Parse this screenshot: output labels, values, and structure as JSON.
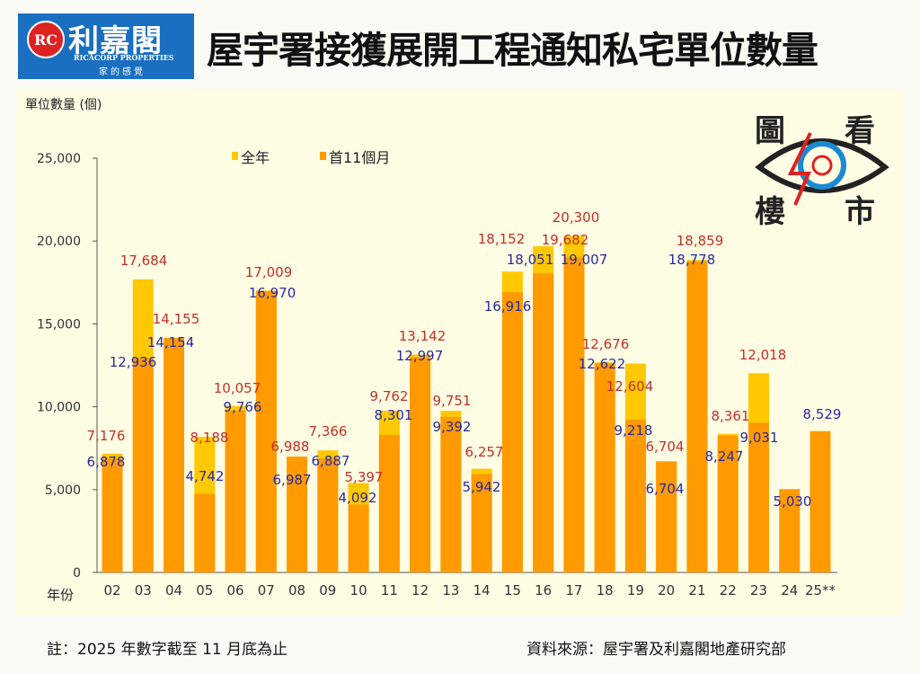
{
  "logo": {
    "name_cn": "利嘉閣",
    "name_en": "RICACORP PROPERTIES",
    "slogan": "家的感覺",
    "mark": "RC"
  },
  "title": "屋宇署接獲展開工程通知私宅單位數量",
  "badge": {
    "chars": [
      "圖",
      "看",
      "樓",
      "市"
    ]
  },
  "colors": {
    "full_year": "#ffc800",
    "first11": "#ff9a00",
    "full_label": "#c0302a",
    "first11_label": "#2a2aa0",
    "panel": "#fffde4"
  },
  "chart_data": {
    "type": "bar",
    "ylabel": "單位數量 (個)",
    "xlabel": "年份",
    "ylim": [
      0,
      25000
    ],
    "yticks": [
      "0",
      "5,000",
      "10,000",
      "15,000",
      "20,000",
      "25,000"
    ],
    "legend_position": "top-left",
    "categories": [
      "02",
      "03",
      "04",
      "05",
      "06",
      "07",
      "08",
      "09",
      "10",
      "11",
      "12",
      "13",
      "14",
      "15",
      "16",
      "17",
      "18",
      "19",
      "20",
      "21",
      "22",
      "23",
      "24",
      "25**"
    ],
    "series": [
      {
        "name": "全年",
        "values": [
          7176,
          17684,
          14155,
          8188,
          10057,
          17009,
          6988,
          7366,
          5397,
          9762,
          13142,
          9751,
          6257,
          18152,
          19682,
          20300,
          12676,
          12604,
          6704,
          18859,
          8361,
          12018,
          null,
          null
        ]
      },
      {
        "name": "首11個月",
        "values": [
          6878,
          12936,
          14154,
          4742,
          9766,
          16970,
          6987,
          6887,
          4092,
          8301,
          12997,
          9392,
          5942,
          16916,
          18051,
          19007,
          12622,
          9218,
          6704,
          18778,
          8247,
          9031,
          5030,
          8529
        ]
      }
    ]
  },
  "footer": {
    "note": "註：2025 年數字截至 11 月底為止",
    "source": "資料來源：屋宇署及利嘉閣地產研究部"
  }
}
